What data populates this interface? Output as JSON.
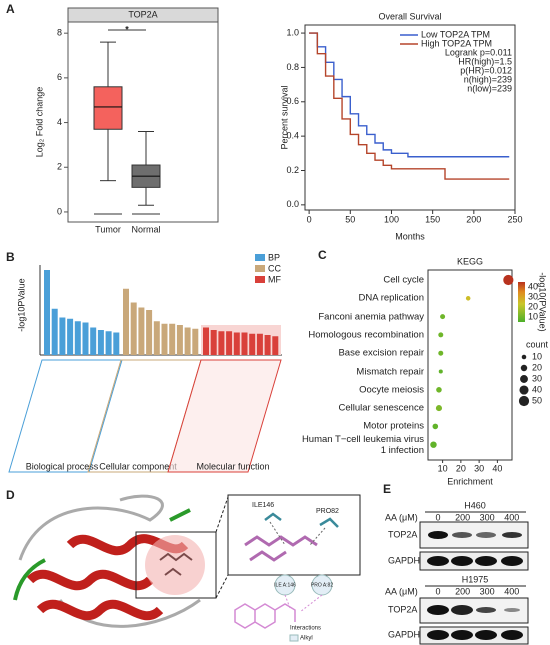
{
  "panel_labels": [
    "A",
    "B",
    "C",
    "D",
    "E"
  ],
  "chart_data": [
    {
      "type": "box",
      "title": "TOP2A",
      "ylabel": "Log₂ Fold change",
      "significance": "*",
      "ylim": [
        -0.45,
        8.5
      ],
      "yticks": [
        0,
        2,
        4,
        6,
        8
      ],
      "series": [
        {
          "name": "Tumor",
          "color": "#f4625d",
          "whisker_low": 1.4,
          "q1": 3.7,
          "median": 4.7,
          "q3": 5.6,
          "whisker_high": 7.6
        },
        {
          "name": "Normal",
          "color": "#6e6e6e",
          "whisker_low": 0.3,
          "q1": 1.1,
          "median": 1.6,
          "q3": 2.1,
          "whisker_high": 3.6
        }
      ]
    },
    {
      "type": "line",
      "title": "Overall Survival",
      "xlabel": "Months",
      "ylabel": "Percent survival",
      "xlim": [
        -5,
        250
      ],
      "xticks": [
        0,
        50,
        100,
        150,
        200,
        250
      ],
      "ylim": [
        -0.03,
        1.047
      ],
      "yticks": [
        {
          "value": 0,
          "label": "0.0"
        },
        {
          "value": 0.2,
          "label": "0.2"
        },
        {
          "value": 0.4,
          "label": "0.4"
        },
        {
          "value": 0.6,
          "label": "0.6"
        },
        {
          "value": 0.8,
          "label": "0.8"
        },
        {
          "value": 1,
          "label": "1.0"
        }
      ],
      "annotations": [
        "Logrank p=0.011",
        "HR(high)=1.5",
        "p(HR)=0.012",
        "n(high)=239",
        "n(low)=239"
      ],
      "series": [
        {
          "name": "Low TOP2A TPM",
          "color": "#3a5fcd",
          "x": [
            0,
            10,
            20,
            30,
            40,
            50,
            60,
            70,
            80,
            90,
            100,
            120,
            150,
            200,
            243
          ],
          "values": [
            1,
            0.92,
            0.83,
            0.73,
            0.63,
            0.53,
            0.46,
            0.41,
            0.36,
            0.32,
            0.3,
            0.28,
            0.28,
            0.28,
            0.28
          ]
        },
        {
          "name": "High TOP2A TPM",
          "color": "#b5452b",
          "x": [
            0,
            10,
            20,
            30,
            40,
            50,
            60,
            70,
            80,
            90,
            100,
            120,
            165,
            200,
            243
          ],
          "values": [
            1,
            0.88,
            0.75,
            0.62,
            0.5,
            0.41,
            0.35,
            0.3,
            0.26,
            0.23,
            0.21,
            0.21,
            0.15,
            0.15,
            0.15
          ]
        }
      ]
    },
    {
      "type": "grouped_bar",
      "ylabel": "-log10PValue",
      "ylim": [
        0,
        72
      ],
      "groups": [
        {
          "name": "BP",
          "label": "Biological process",
          "color": "#4a9fd8",
          "values": [
            68,
            37,
            30,
            29,
            27,
            26,
            22,
            20,
            19,
            18
          ]
        },
        {
          "name": "CC",
          "label": "Cellular component",
          "color": "#c9a87a",
          "values": [
            53,
            42,
            38,
            36,
            27,
            25,
            25,
            24,
            22,
            21
          ]
        },
        {
          "name": "MF",
          "label": "Molecular function",
          "color": "#d9403a",
          "values": [
            22,
            20,
            19,
            19,
            18,
            18,
            17,
            17,
            16,
            15
          ]
        }
      ]
    },
    {
      "type": "dot",
      "title": "KEGG",
      "xlabel": "Enrichment",
      "categories": [
        "Cell cycle",
        "DNA replication",
        "Fanconi anemia pathway",
        "Homologous recombination",
        "Base excision repair",
        "Mismatch repair",
        "Oocyte meiosis",
        "Cellular senescence",
        "Motor proteins",
        "Human T−cell leukemia virus 1 infection"
      ],
      "values": [
        46,
        24,
        10,
        9,
        9,
        9,
        8,
        8,
        6,
        5
      ],
      "count": [
        50,
        10,
        12,
        12,
        12,
        8,
        15,
        18,
        15,
        20
      ],
      "pvalue": [
        45,
        25,
        10,
        10,
        10,
        8,
        10,
        12,
        8,
        8
      ],
      "xlim": [
        2,
        48
      ],
      "xticks": [
        10,
        20,
        30,
        40
      ],
      "color_label": "-log10(PValue)",
      "colorlim": [
        5,
        45
      ],
      "colorticks": [
        10,
        20,
        30,
        40
      ],
      "size_label": "count",
      "sizeticks": [
        10,
        20,
        30,
        40,
        50
      ]
    }
  ],
  "docking": {
    "residues": [
      "ILE146",
      "PRO82"
    ],
    "residues_2d": [
      "ILE A:146",
      "PRO A:82"
    ],
    "legend_title": "Interactions",
    "legend_item": "Alkyl"
  },
  "western": [
    {
      "cell_line": "H460",
      "treatment": "AA (μM)",
      "doses": [
        "0",
        "200",
        "300",
        "400"
      ],
      "proteins": [
        "TOP2A",
        "GAPDH"
      ]
    },
    {
      "cell_line": "H1975",
      "treatment": "AA (μM)",
      "doses": [
        "0",
        "200",
        "300",
        "400"
      ],
      "proteins": [
        "TOP2A",
        "GAPDH"
      ]
    }
  ]
}
